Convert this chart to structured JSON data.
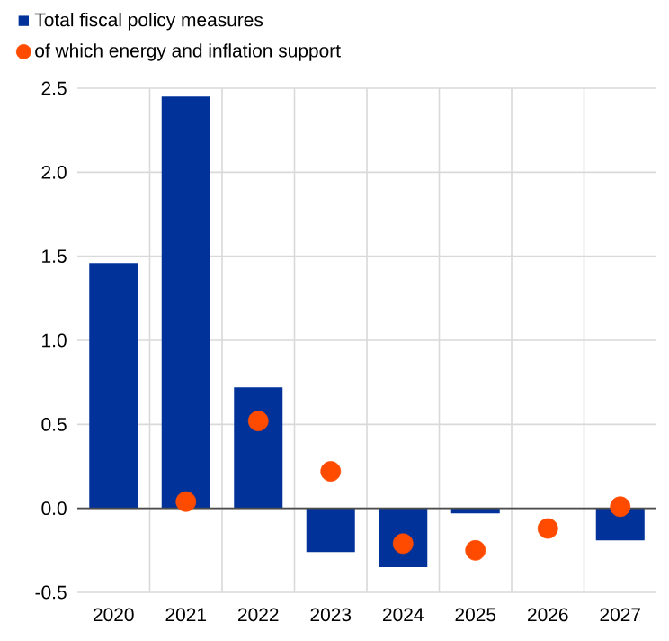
{
  "chart_data": {
    "type": "bar",
    "categories": [
      "2020",
      "2021",
      "2022",
      "2023",
      "2024",
      "2025",
      "2026",
      "2027"
    ],
    "series": [
      {
        "name": "Total fiscal policy measures",
        "color": "#003299",
        "values": [
          1.46,
          2.45,
          0.72,
          -0.26,
          -0.35,
          -0.03,
          null,
          -0.19
        ]
      },
      {
        "name": "of which energy and inflation support",
        "color": "#ff4b00",
        "type": "scatter",
        "marker": "circle",
        "values": [
          null,
          0.04,
          0.52,
          0.22,
          -0.21,
          -0.25,
          -0.12,
          0.01
        ]
      }
    ],
    "ylim": [
      -0.5,
      2.5
    ],
    "yticks": [
      {
        "value": -0.5,
        "label": "-0.5"
      },
      {
        "value": 0.0,
        "label": "0.0"
      },
      {
        "value": 0.5,
        "label": "0.5"
      },
      {
        "value": 1.0,
        "label": "1.0"
      },
      {
        "value": 1.5,
        "label": "1.5"
      },
      {
        "value": 2.0,
        "label": "2.0"
      },
      {
        "value": 2.5,
        "label": "2.5"
      }
    ],
    "grid": true,
    "legend": "top left"
  }
}
